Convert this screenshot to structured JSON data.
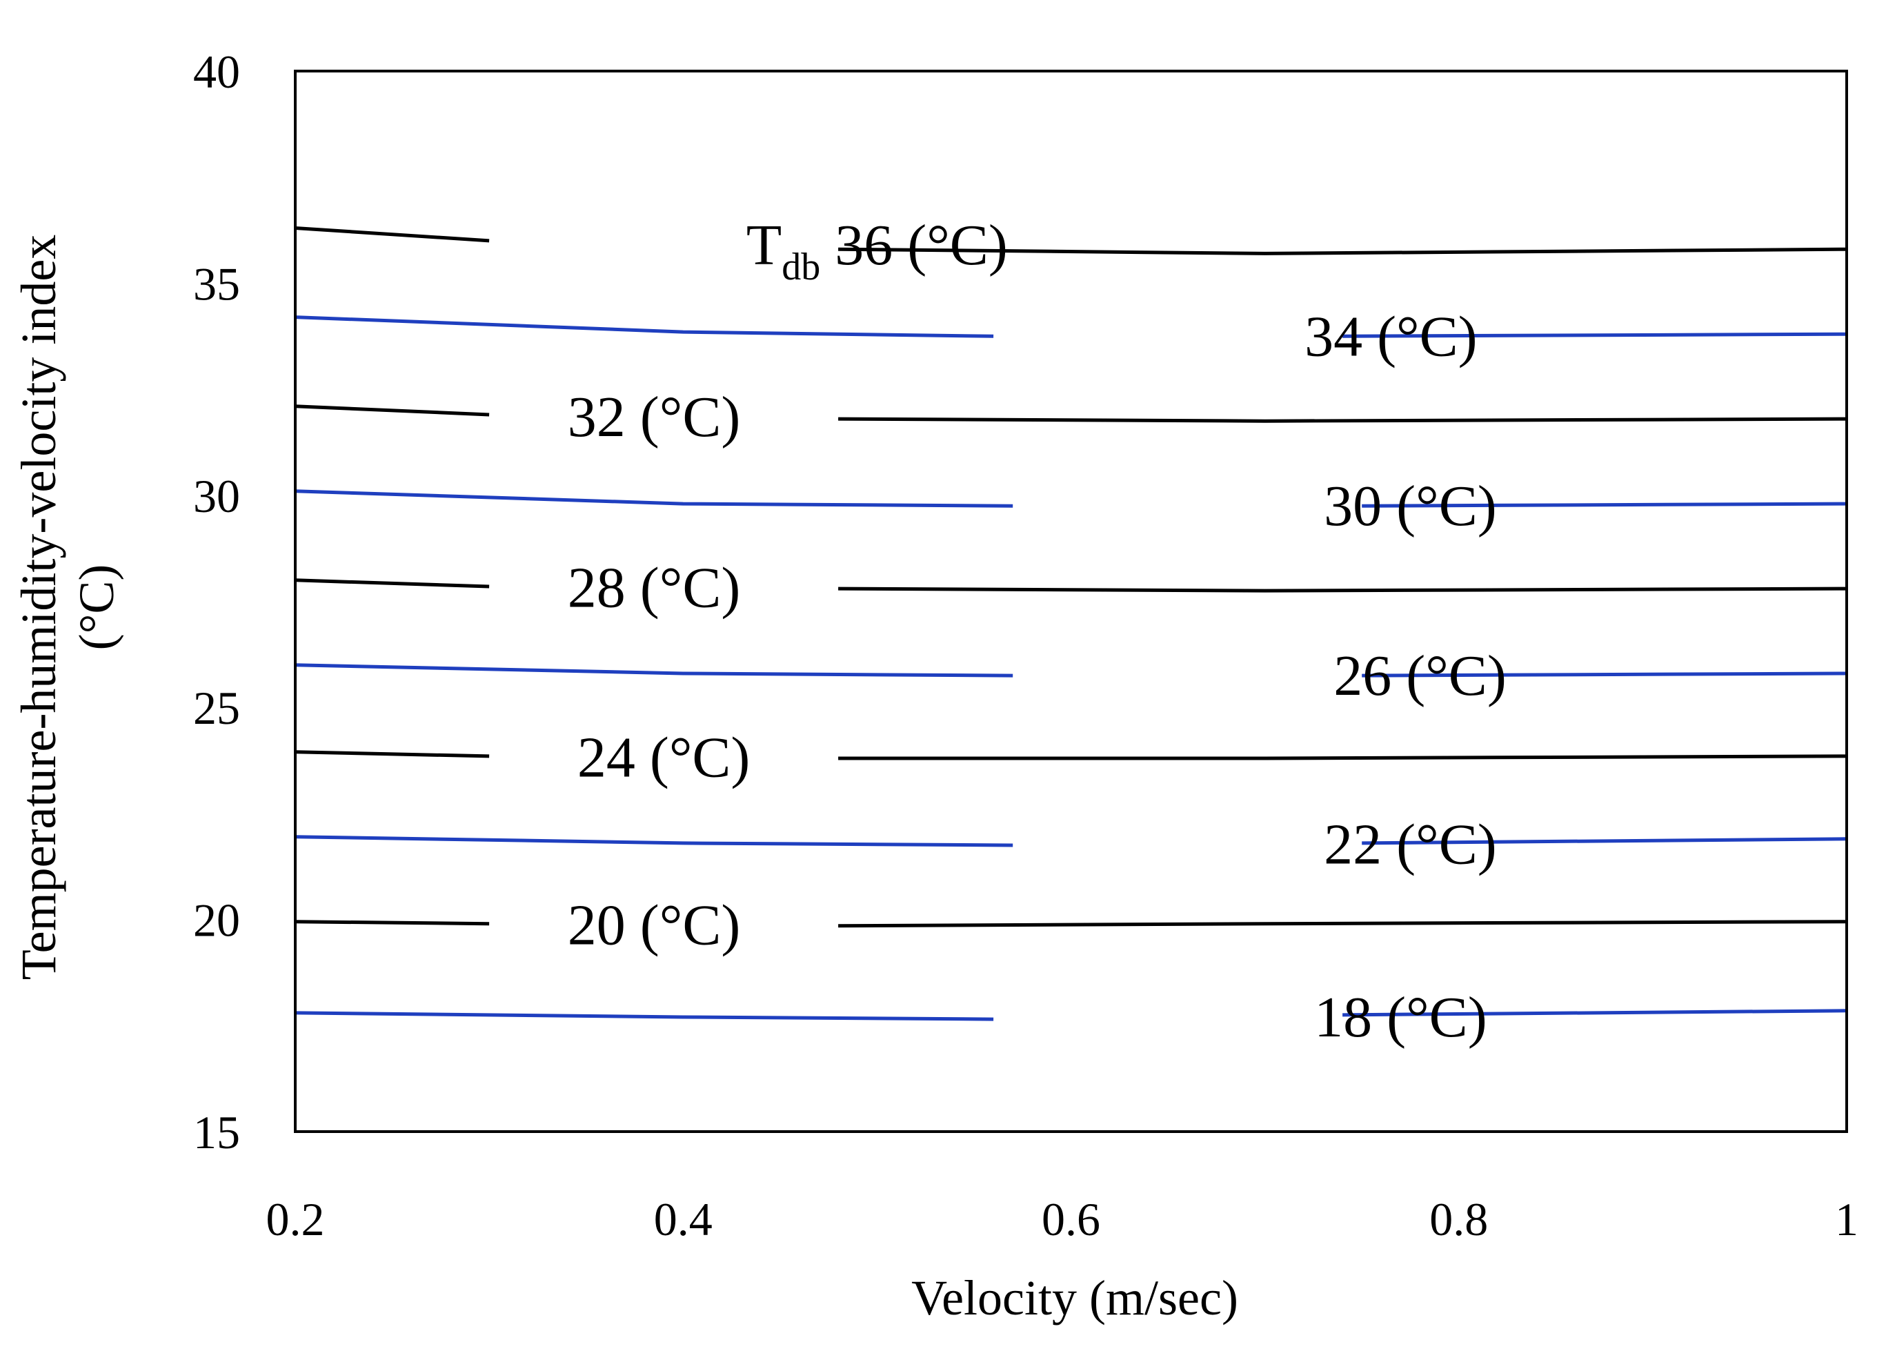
{
  "chart_data": {
    "type": "line",
    "title": "",
    "xlabel": "Velocity (m/sec)",
    "ylabel_line1": "Temperature-humidity-velocity index",
    "ylabel_line2": "(°C)",
    "xlim": [
      0.2,
      1.0
    ],
    "ylim": [
      15,
      40
    ],
    "xticks": [
      0.2,
      0.4,
      0.6,
      0.8,
      1.0
    ],
    "xtick_labels": [
      "0.2",
      "0.4",
      "0.6",
      "0.8",
      "1"
    ],
    "yticks": [
      15,
      20,
      25,
      30,
      35,
      40
    ],
    "ytick_labels": [
      "15",
      "20",
      "25",
      "30",
      "35",
      "40"
    ],
    "grid": false,
    "series": [
      {
        "name": "36 (°C)",
        "prefix": "T",
        "prefix_sub": "db",
        "color": "#000000",
        "x": [
          0.2,
          0.3,
          0.48,
          0.7,
          1.0
        ],
        "y": [
          36.3,
          36.0,
          35.8,
          35.7,
          35.8
        ],
        "label_x": 0.5,
        "gap": [
          0.3,
          0.48
        ]
      },
      {
        "name": "34 (°C)",
        "color": "#1f3fbf",
        "x": [
          0.2,
          0.4,
          0.56,
          0.74,
          1.0
        ],
        "y": [
          34.2,
          33.85,
          33.75,
          33.75,
          33.8
        ],
        "label_x": 0.765,
        "gap": [
          0.56,
          0.74
        ]
      },
      {
        "name": "32 (°C)",
        "color": "#000000",
        "x": [
          0.2,
          0.3,
          0.48,
          0.7,
          1.0
        ],
        "y": [
          32.1,
          31.9,
          31.8,
          31.75,
          31.8
        ],
        "label_x": 0.385,
        "gap": [
          0.3,
          0.48
        ]
      },
      {
        "name": "30 (°C)",
        "color": "#1f3fbf",
        "x": [
          0.2,
          0.4,
          0.57,
          0.75,
          1.0
        ],
        "y": [
          30.1,
          29.8,
          29.75,
          29.75,
          29.8
        ],
        "label_x": 0.775,
        "gap": [
          0.57,
          0.75
        ]
      },
      {
        "name": "28 (°C)",
        "color": "#000000",
        "x": [
          0.2,
          0.3,
          0.48,
          0.7,
          1.0
        ],
        "y": [
          28.0,
          27.85,
          27.8,
          27.75,
          27.8
        ],
        "label_x": 0.385,
        "gap": [
          0.3,
          0.48
        ]
      },
      {
        "name": "26 (°C)",
        "color": "#1f3fbf",
        "x": [
          0.2,
          0.4,
          0.57,
          0.75,
          1.0
        ],
        "y": [
          26.0,
          25.8,
          25.75,
          25.75,
          25.8
        ],
        "label_x": 0.78,
        "gap": [
          0.57,
          0.75
        ]
      },
      {
        "name": "24 (°C)",
        "color": "#000000",
        "x": [
          0.2,
          0.3,
          0.48,
          0.7,
          1.0
        ],
        "y": [
          23.95,
          23.85,
          23.8,
          23.8,
          23.85
        ],
        "label_x": 0.39,
        "gap": [
          0.3,
          0.48
        ]
      },
      {
        "name": "22 (°C)",
        "color": "#1f3fbf",
        "x": [
          0.2,
          0.4,
          0.57,
          0.75,
          1.0
        ],
        "y": [
          21.95,
          21.8,
          21.75,
          21.8,
          21.9
        ],
        "label_x": 0.775,
        "gap": [
          0.57,
          0.75
        ]
      },
      {
        "name": "20 (°C)",
        "color": "#000000",
        "x": [
          0.2,
          0.3,
          0.48,
          0.7,
          1.0
        ],
        "y": [
          19.95,
          19.9,
          19.85,
          19.9,
          19.95
        ],
        "label_x": 0.385,
        "gap": [
          0.3,
          0.48
        ]
      },
      {
        "name": "18 (°C)",
        "color": "#1f3fbf",
        "x": [
          0.2,
          0.4,
          0.56,
          0.74,
          1.0
        ],
        "y": [
          17.8,
          17.7,
          17.65,
          17.75,
          17.85
        ],
        "label_x": 0.77,
        "gap": [
          0.56,
          0.74
        ]
      }
    ]
  }
}
